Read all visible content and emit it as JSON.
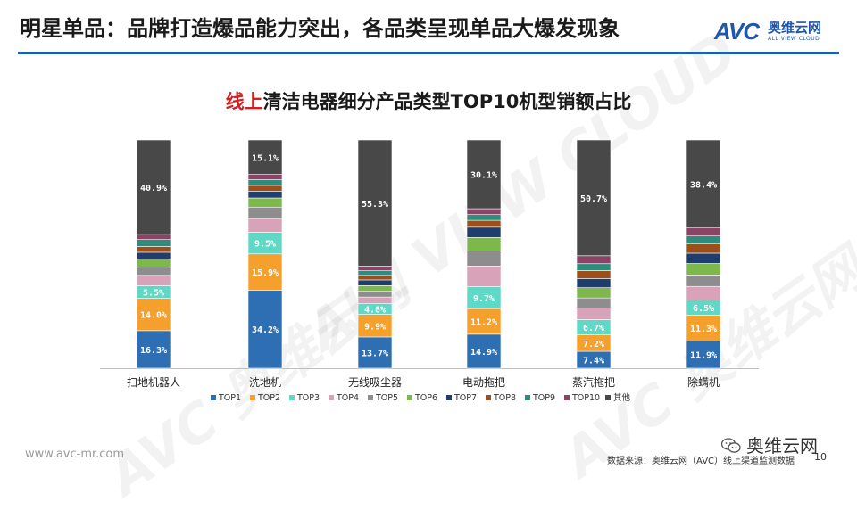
{
  "header": {
    "title": "明星单品：品牌打造爆品能力突出，各品类呈现单品大爆发现象"
  },
  "logo": {
    "avc": "AVC",
    "cn": "奥维云网",
    "en": "ALL VIEW CLOUD"
  },
  "footer": {
    "url": "www.avc-mr.com",
    "wechat": "奥维云网",
    "source": "数据来源：奥维云网（AVC）线上渠道监测数据",
    "page": "10"
  },
  "chart_data": {
    "type": "bar",
    "stacked": true,
    "title_highlight": "线上",
    "title_rest": "清洁电器细分产品类型TOP10机型销额占比",
    "categories": [
      "扫地机器人",
      "洗地机",
      "无线吸尘器",
      "电动拖把",
      "蒸汽拖把",
      "除螨机"
    ],
    "ylim": [
      0,
      100
    ],
    "legend_position": "bottom",
    "series": [
      {
        "name": "TOP1",
        "color": "#2e6fb4",
        "values": [
          16.3,
          34.2,
          13.7,
          14.9,
          7.4,
          11.9
        ]
      },
      {
        "name": "TOP2",
        "color": "#f5a02c",
        "values": [
          14.0,
          15.9,
          9.9,
          11.2,
          7.2,
          11.3
        ]
      },
      {
        "name": "TOP3",
        "color": "#5fd9c6",
        "values": [
          5.5,
          9.5,
          4.8,
          9.7,
          6.7,
          6.5
        ]
      },
      {
        "name": "TOP4",
        "color": "#d8a3b8",
        "values": [
          4.5,
          6.0,
          2.8,
          9.0,
          5.0,
          6.0
        ]
      },
      {
        "name": "TOP5",
        "color": "#8d8d8d",
        "values": [
          3.5,
          5.0,
          2.5,
          6.5,
          4.5,
          5.0
        ]
      },
      {
        "name": "TOP6",
        "color": "#7cb84a",
        "values": [
          3.5,
          4.0,
          2.5,
          6.0,
          4.5,
          5.0
        ]
      },
      {
        "name": "TOP7",
        "color": "#1f3e6e",
        "values": [
          3.0,
          3.0,
          2.5,
          4.5,
          4.0,
          4.5
        ]
      },
      {
        "name": "TOP8",
        "color": "#9c4f19",
        "values": [
          2.5,
          2.5,
          2.0,
          3.0,
          3.5,
          4.0
        ]
      },
      {
        "name": "TOP9",
        "color": "#2e8c7c",
        "values": [
          3.0,
          2.5,
          2.0,
          2.5,
          3.0,
          3.5
        ]
      },
      {
        "name": "TOP10",
        "color": "#8b4466",
        "values": [
          2.3,
          2.3,
          2.0,
          2.6,
          3.5,
          3.5
        ]
      },
      {
        "name": "其他",
        "color": "#484848",
        "values": [
          40.9,
          15.1,
          55.3,
          30.1,
          50.7,
          38.4
        ]
      }
    ],
    "labels": {
      "TOP1": [
        "16.3%",
        "34.2%",
        "13.7%",
        "14.9%",
        "7.4%",
        "11.9%"
      ],
      "TOP2": [
        "14.0%",
        "15.9%",
        "9.9%",
        "11.2%",
        "7.2%",
        "11.3%"
      ],
      "TOP3": [
        "5.5%",
        "9.5%",
        "4.8%",
        "9.7%",
        "6.7%",
        "6.5%"
      ],
      "其他": [
        "40.9%",
        "15.1%",
        "55.3%",
        "30.1%",
        "50.7%",
        "38.4%"
      ]
    }
  }
}
